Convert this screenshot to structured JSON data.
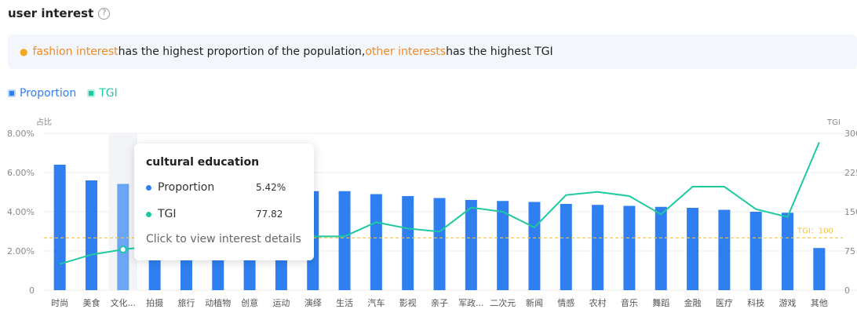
{
  "header": {
    "title": "user interest",
    "help_icon": "help-circle-icon"
  },
  "insight": {
    "icon": "lightbulb-icon",
    "highlight1": "fashion interest",
    "text1": "has the highest proportion of the population,",
    "highlight2": "other interests",
    "text2": "has the highest TGI"
  },
  "colors": {
    "bar": "#2f7ff0",
    "bar_hover": "#6aa6f5",
    "line": "#1dc9a0",
    "ref": "#f5c242",
    "highlight": "#f08a24"
  },
  "legend": [
    {
      "label": "Proportion",
      "color": "#2f7ff0"
    },
    {
      "label": "TGI",
      "color": "#1dc9a0"
    }
  ],
  "chart_data": {
    "type": "bar",
    "categories": [
      "时尚",
      "美食",
      "文化...",
      "拍摄",
      "旅行",
      "动植物",
      "创意",
      "运动",
      "演绎",
      "生活",
      "汽车",
      "影视",
      "亲子",
      "军政...",
      "二次元",
      "新闻",
      "情感",
      "农村",
      "音乐",
      "舞蹈",
      "金融",
      "医疗",
      "科技",
      "游戏",
      "其他"
    ],
    "series": [
      {
        "name": "Proportion",
        "type": "bar",
        "axis": "left",
        "values": [
          6.4,
          5.6,
          5.42,
          5.3,
          5.2,
          5.2,
          5.1,
          5.1,
          5.05,
          5.05,
          4.9,
          4.8,
          4.7,
          4.6,
          4.55,
          4.5,
          4.4,
          4.35,
          4.3,
          4.25,
          4.2,
          4.1,
          4.0,
          3.95,
          2.15
        ]
      },
      {
        "name": "TGI",
        "type": "line",
        "axis": "right",
        "values": [
          50,
          68,
          77.82,
          85,
          90,
          95,
          100,
          105,
          103,
          103,
          130,
          118,
          112,
          158,
          150,
          120,
          182,
          188,
          180,
          145,
          198,
          198,
          155,
          140,
          283
        ]
      }
    ],
    "y_left": {
      "label": "占比",
      "ticks": [
        "0",
        "2.00%",
        "4.00%",
        "6.00%",
        "8.00%"
      ],
      "min": 0,
      "max": 8
    },
    "y_right": {
      "label": "TGI",
      "ticks": [
        "0",
        "75",
        "150",
        "225",
        "300"
      ],
      "min": 0,
      "max": 300
    },
    "reference_line": {
      "value": 100,
      "label": "TGI：100"
    },
    "grid": true,
    "legend_position": "top-left",
    "highlight_index": 2
  },
  "tooltip": {
    "title": "cultural education",
    "rows": [
      {
        "label": "Proportion",
        "value": "5.42%",
        "color": "#2f7ff0"
      },
      {
        "label": "TGI",
        "value": "77.82",
        "color": "#1dc9a0"
      }
    ],
    "link": "Click to view interest details"
  }
}
